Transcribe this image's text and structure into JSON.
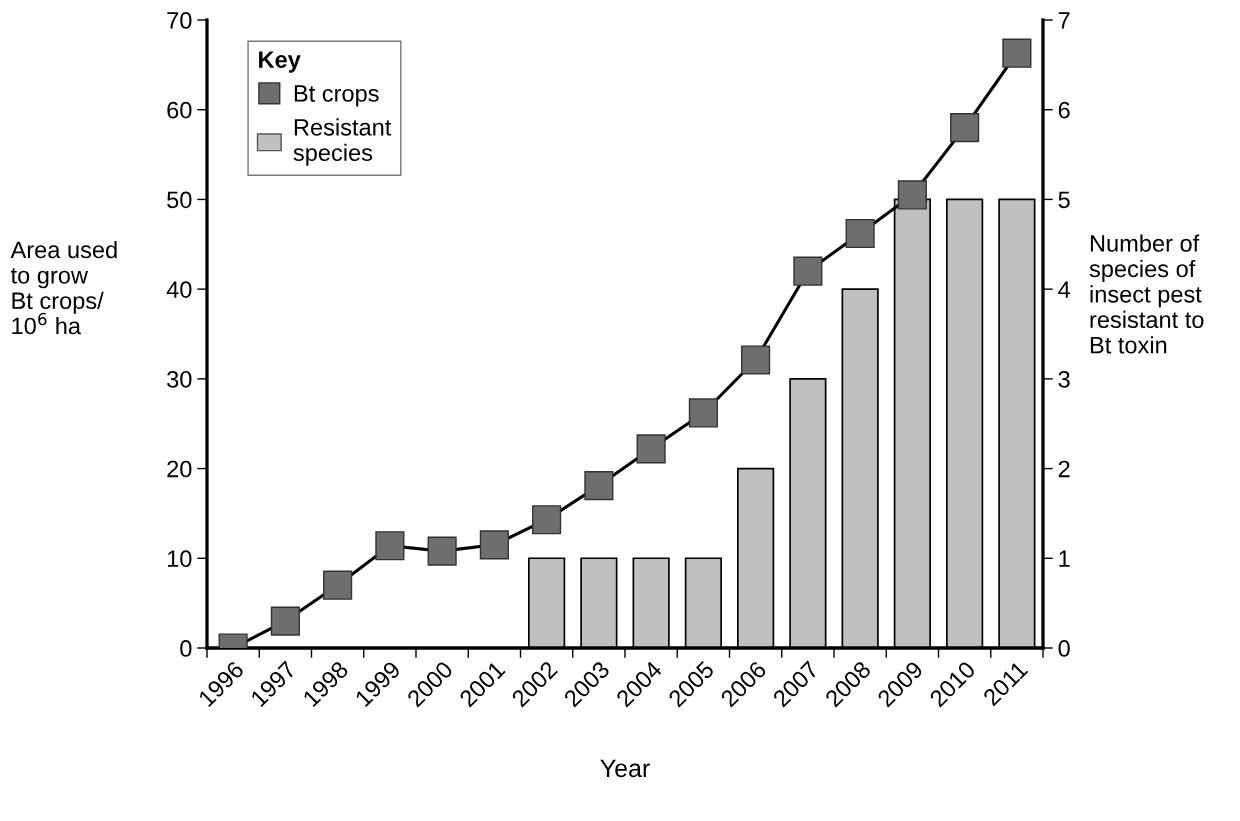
{
  "chart_data": {
    "type": "bar",
    "xlabel": "Year",
    "ylabel": "Area used\nto grow\nBt crops/\n10$^{6}$ ha",
    "y2label": "Number of\nspecies of\ninsect pest\nresistant to\nBt toxin",
    "legend_title": "Key",
    "categories": [
      "1996",
      "1997",
      "1998",
      "1999",
      "2000",
      "2001",
      "2002",
      "2003",
      "2004",
      "2005",
      "2006",
      "2007",
      "2008",
      "2009",
      "2010",
      "2011"
    ],
    "series": [
      {
        "name": "Resistant\nspecies",
        "axis": "y2",
        "color": "#c0c0c0",
        "values": [
          null,
          null,
          null,
          null,
          null,
          null,
          1,
          1,
          1,
          1,
          2,
          3,
          4,
          5,
          5,
          5
        ]
      },
      {
        "name": "Bt crops",
        "type": "line",
        "axis": "y",
        "color": "#6e6e6e",
        "marker": "square",
        "values": [
          0,
          3.0,
          7.0,
          11.4,
          10.8,
          11.5,
          14.3,
          18.1,
          22.2,
          26.2,
          32.1,
          42.0,
          46.2,
          50.5,
          58.0,
          66.3
        ]
      }
    ],
    "ylim": [
      0,
      70
    ],
    "yticks": [
      0,
      10,
      20,
      30,
      40,
      50,
      60,
      70
    ],
    "y2lim": [
      0,
      7
    ],
    "y2ticks": [
      0,
      1,
      2,
      3,
      4,
      5,
      6,
      7
    ],
    "legend": "top left",
    "grid": false
  }
}
